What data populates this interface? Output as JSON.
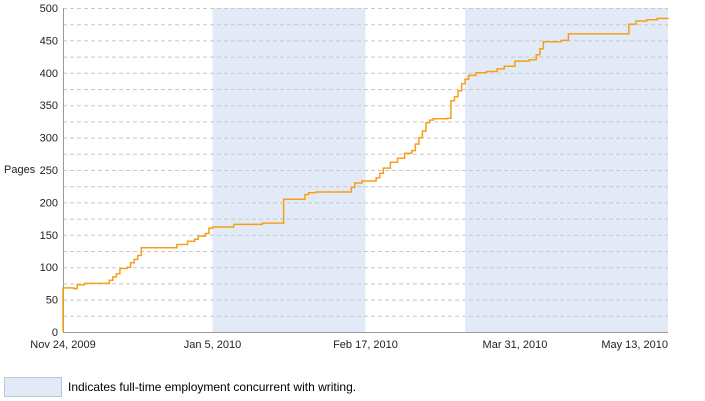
{
  "chart_data": {
    "type": "line",
    "ylabel": "Pages",
    "xlabel": "",
    "x_domain": [
      "2009-11-24",
      "2010-05-13"
    ],
    "ylim": [
      0,
      500
    ],
    "y_ticks": [
      0,
      50,
      100,
      150,
      200,
      250,
      300,
      350,
      400,
      450,
      500
    ],
    "x_ticks": [
      {
        "date": "2009-11-24",
        "label": "Nov 24, 2009"
      },
      {
        "date": "2010-01-05",
        "label": "Jan 5, 2010"
      },
      {
        "date": "2010-02-17",
        "label": "Feb 17, 2010"
      },
      {
        "date": "2010-03-31",
        "label": "Mar 31, 2010"
      },
      {
        "date": "2010-05-13",
        "label": "May 13, 2010"
      }
    ],
    "grid": "horizontal dashed, every 25 pages",
    "series": [
      {
        "color": "#f5a01a",
        "points": [
          [
            "2009-11-24",
            0
          ],
          [
            "2009-11-24",
            68
          ],
          [
            "2009-11-27",
            67
          ],
          [
            "2009-11-28",
            73
          ],
          [
            "2009-11-30",
            75
          ],
          [
            "2009-12-06",
            75
          ],
          [
            "2009-12-07",
            80
          ],
          [
            "2009-12-08",
            85
          ],
          [
            "2009-12-09",
            90
          ],
          [
            "2009-12-10",
            98
          ],
          [
            "2009-12-12",
            100
          ],
          [
            "2009-12-13",
            107
          ],
          [
            "2009-12-14",
            112
          ],
          [
            "2009-12-15",
            118
          ],
          [
            "2009-12-16",
            130
          ],
          [
            "2009-12-24",
            130
          ],
          [
            "2009-12-26",
            135
          ],
          [
            "2009-12-29",
            140
          ],
          [
            "2009-12-31",
            143
          ],
          [
            "2010-01-01",
            148
          ],
          [
            "2010-01-03",
            152
          ],
          [
            "2010-01-04",
            160
          ],
          [
            "2010-01-05",
            162
          ],
          [
            "2010-01-11",
            166
          ],
          [
            "2010-01-18",
            166
          ],
          [
            "2010-01-19",
            168
          ],
          [
            "2010-01-24",
            168
          ],
          [
            "2010-01-25",
            205
          ],
          [
            "2010-01-30",
            205
          ],
          [
            "2010-01-31",
            212
          ],
          [
            "2010-02-01",
            215
          ],
          [
            "2010-02-03",
            216
          ],
          [
            "2010-02-12",
            216
          ],
          [
            "2010-02-13",
            223
          ],
          [
            "2010-02-14",
            230
          ],
          [
            "2010-02-16",
            233
          ],
          [
            "2010-02-20",
            238
          ],
          [
            "2010-02-21",
            245
          ],
          [
            "2010-02-22",
            253
          ],
          [
            "2010-02-24",
            262
          ],
          [
            "2010-02-26",
            268
          ],
          [
            "2010-02-28",
            276
          ],
          [
            "2010-03-02",
            280
          ],
          [
            "2010-03-03",
            290
          ],
          [
            "2010-03-04",
            300
          ],
          [
            "2010-03-05",
            310
          ],
          [
            "2010-03-06",
            323
          ],
          [
            "2010-03-07",
            327
          ],
          [
            "2010-03-08",
            329
          ],
          [
            "2010-03-12",
            330
          ],
          [
            "2010-03-13",
            357
          ],
          [
            "2010-03-14",
            363
          ],
          [
            "2010-03-15",
            372
          ],
          [
            "2010-03-16",
            383
          ],
          [
            "2010-03-17",
            390
          ],
          [
            "2010-03-18",
            396
          ],
          [
            "2010-03-20",
            400
          ],
          [
            "2010-03-23",
            402
          ],
          [
            "2010-03-26",
            406
          ],
          [
            "2010-03-28",
            410
          ],
          [
            "2010-03-31",
            418
          ],
          [
            "2010-04-04",
            420
          ],
          [
            "2010-04-06",
            428
          ],
          [
            "2010-04-07",
            437
          ],
          [
            "2010-04-08",
            448
          ],
          [
            "2010-04-13",
            450
          ],
          [
            "2010-04-15",
            460
          ],
          [
            "2010-05-01",
            460
          ],
          [
            "2010-05-02",
            475
          ],
          [
            "2010-05-04",
            480
          ],
          [
            "2010-05-07",
            482
          ],
          [
            "2010-05-10",
            484
          ],
          [
            "2010-05-13",
            485
          ]
        ]
      }
    ],
    "shaded_ranges": [
      {
        "start": "2010-01-05",
        "end": "2010-02-17",
        "color": "#e3eaf7"
      },
      {
        "start": "2010-03-17",
        "end": "2010-05-13",
        "color": "#e3eaf7"
      }
    ],
    "colors": {
      "line": "#f5a01a",
      "shade": "#e3eaf7",
      "grid": "#c8c8c8",
      "axis": "#999999"
    }
  },
  "legend": {
    "text": "Indicates full-time employment concurrent with writing.",
    "swatch_color": "#e3eaf7"
  }
}
